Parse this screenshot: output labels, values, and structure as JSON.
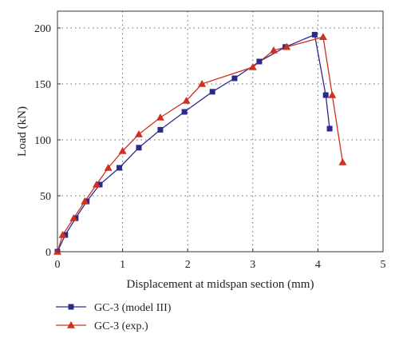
{
  "chart_data": {
    "type": "line",
    "xlabel": "Displacement at midspan section (mm)",
    "ylabel": "Load (kN)",
    "xlim": [
      0,
      5
    ],
    "ylim": [
      0,
      215
    ],
    "x_ticks": [
      0,
      1,
      2,
      3,
      4,
      5
    ],
    "y_ticks": [
      0,
      50,
      100,
      150,
      200
    ],
    "x_tick_labels": [
      "0",
      "1",
      "2",
      "3",
      "4",
      "5"
    ],
    "y_tick_labels": [
      "0",
      "50",
      "100",
      "150",
      "200"
    ],
    "grid": true,
    "grid_style": "dotted",
    "legend_position": "bottom-left (below axes)",
    "series": [
      {
        "name": "GC-3 (model III)",
        "color": "#2b2a8c",
        "marker": "square",
        "x": [
          0.0,
          0.12,
          0.28,
          0.45,
          0.65,
          0.95,
          1.25,
          1.58,
          1.95,
          2.38,
          2.72,
          3.1,
          3.5,
          3.95,
          4.12,
          4.18
        ],
        "y": [
          0,
          15,
          30,
          45,
          60,
          75,
          93,
          109,
          125,
          143,
          155,
          170,
          183,
          194,
          140,
          110
        ]
      },
      {
        "name": "GC-3 (exp.)",
        "color": "#d0301e",
        "marker": "triangle",
        "x": [
          0.0,
          0.08,
          0.25,
          0.42,
          0.6,
          0.78,
          1.0,
          1.25,
          1.58,
          1.98,
          2.22,
          3.0,
          3.32,
          3.52,
          4.08,
          4.22,
          4.38
        ],
        "y": [
          0,
          15,
          30,
          45,
          60,
          75,
          90,
          105,
          120,
          135,
          150,
          165,
          180,
          183,
          192,
          140,
          80
        ]
      }
    ]
  }
}
